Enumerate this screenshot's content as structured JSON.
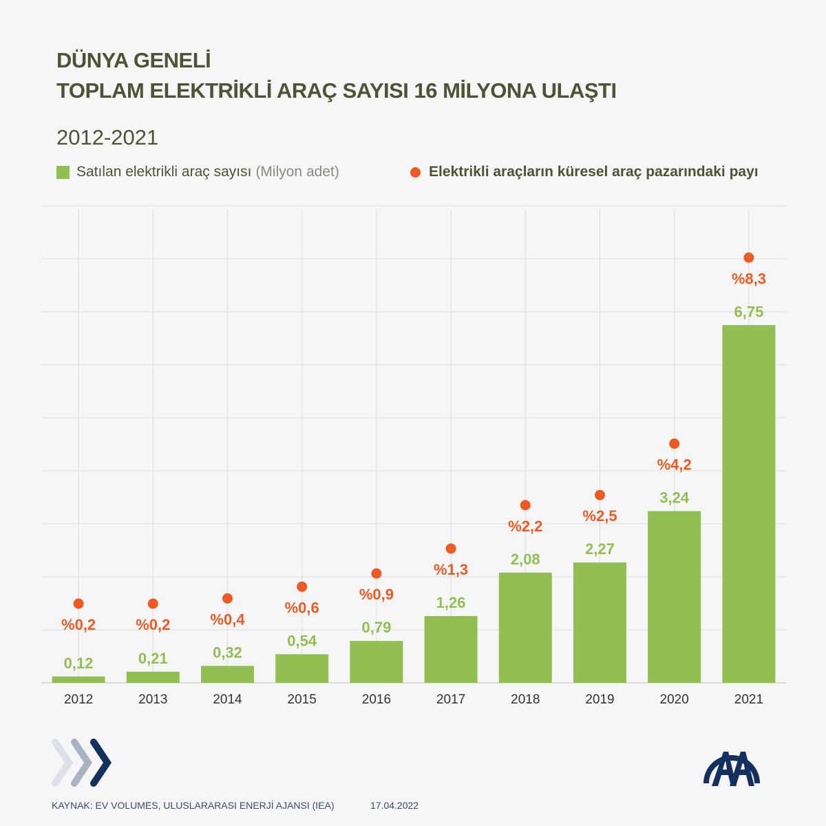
{
  "title_line1": "DÜNYA GENELİ",
  "title_line2": "TOPLAM ELEKTRİKLİ ARAÇ SAYISI 16 MİLYONA ULAŞTI",
  "subtitle": "2012-2021",
  "legend": {
    "bars_label": "Satılan elektrikli araç sayısı",
    "bars_unit": "(Milyon adet)",
    "dots_label": "Elektrikli araçların küresel araç pazarındaki payı"
  },
  "colors": {
    "bar": "#92bf52",
    "dot": "#ef5a24",
    "text": "#4d5334",
    "grid": "#dddddd",
    "logo": "#14305e"
  },
  "footer": {
    "source": "KAYNAK: EV VOLUMES, ULUSLARARASI ENERJİ AJANSI (IEA)",
    "date": "17.04.2022",
    "logo_text": "AA"
  },
  "chart_data": {
    "type": "bar",
    "categories": [
      "2012",
      "2013",
      "2014",
      "2015",
      "2016",
      "2017",
      "2018",
      "2019",
      "2020",
      "2021"
    ],
    "series": [
      {
        "name": "Satılan elektrikli araç sayısı (Milyon adet)",
        "type": "bar",
        "values": [
          0.12,
          0.21,
          0.32,
          0.54,
          0.79,
          1.26,
          2.08,
          2.27,
          3.24,
          6.75
        ],
        "labels": [
          "0,12",
          "0,21",
          "0,32",
          "0,54",
          "0,79",
          "1,26",
          "2,08",
          "2,27",
          "3,24",
          "6,75"
        ]
      },
      {
        "name": "Elektrikli araçların küresel araç pazarındaki payı",
        "type": "dot",
        "values": [
          0.2,
          0.2,
          0.4,
          0.6,
          0.9,
          1.3,
          2.2,
          2.5,
          4.2,
          8.3
        ],
        "labels": [
          "%0,2",
          "%0,2",
          "%0,4",
          "%0,6",
          "%0,9",
          "%1,3",
          "%2,2",
          "%2,5",
          "%4,2",
          "%8,3"
        ],
        "unit": "%"
      }
    ],
    "ylim": [
      0,
      9
    ],
    "grid": true,
    "legend_position": "top-left"
  }
}
